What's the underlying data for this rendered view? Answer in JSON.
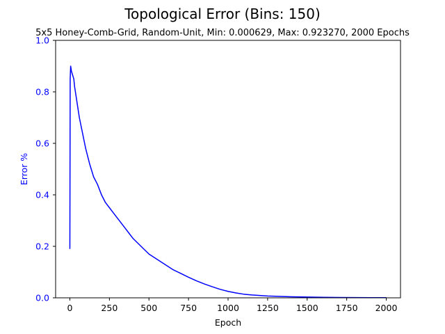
{
  "chart_data": {
    "type": "line",
    "title": "Topological Error (Bins: 150)",
    "subtitle": "5x5 Honey-Comb-Grid, Random-Unit, Min: 0.000629, Max: 0.923270, 2000 Epochs",
    "xlabel": "Epoch",
    "ylabel": "Error %",
    "xlim": [
      -90,
      2090
    ],
    "ylim": [
      0,
      1.0
    ],
    "x_ticks": [
      "0",
      "250",
      "500",
      "750",
      "1000",
      "1250",
      "1500",
      "1750",
      "2000"
    ],
    "y_ticks": [
      "0.0",
      "0.2",
      "0.4",
      "0.6",
      "0.8",
      "1.0"
    ],
    "grid": false,
    "series": [
      {
        "color": "#0000ff",
        "x": [
          0,
          2,
          5,
          10,
          15,
          20,
          25,
          30,
          40,
          50,
          60,
          70,
          80,
          90,
          100,
          125,
          150,
          175,
          200,
          225,
          250,
          275,
          300,
          325,
          350,
          375,
          400,
          450,
          500,
          550,
          600,
          650,
          700,
          750,
          800,
          850,
          900,
          950,
          1000,
          1050,
          1100,
          1150,
          1200,
          1250,
          1300,
          1400,
          1500,
          1600,
          1700,
          1800,
          1900,
          2000
        ],
        "values": [
          0.19,
          0.85,
          0.9,
          0.88,
          0.87,
          0.86,
          0.85,
          0.82,
          0.78,
          0.74,
          0.7,
          0.67,
          0.64,
          0.61,
          0.58,
          0.52,
          0.47,
          0.44,
          0.4,
          0.37,
          0.35,
          0.33,
          0.31,
          0.29,
          0.27,
          0.25,
          0.23,
          0.2,
          0.17,
          0.15,
          0.13,
          0.11,
          0.095,
          0.08,
          0.066,
          0.054,
          0.043,
          0.033,
          0.025,
          0.019,
          0.014,
          0.011,
          0.009,
          0.007,
          0.006,
          0.004,
          0.003,
          0.002,
          0.0015,
          0.001,
          0.0008,
          0.0006
        ]
      }
    ]
  }
}
